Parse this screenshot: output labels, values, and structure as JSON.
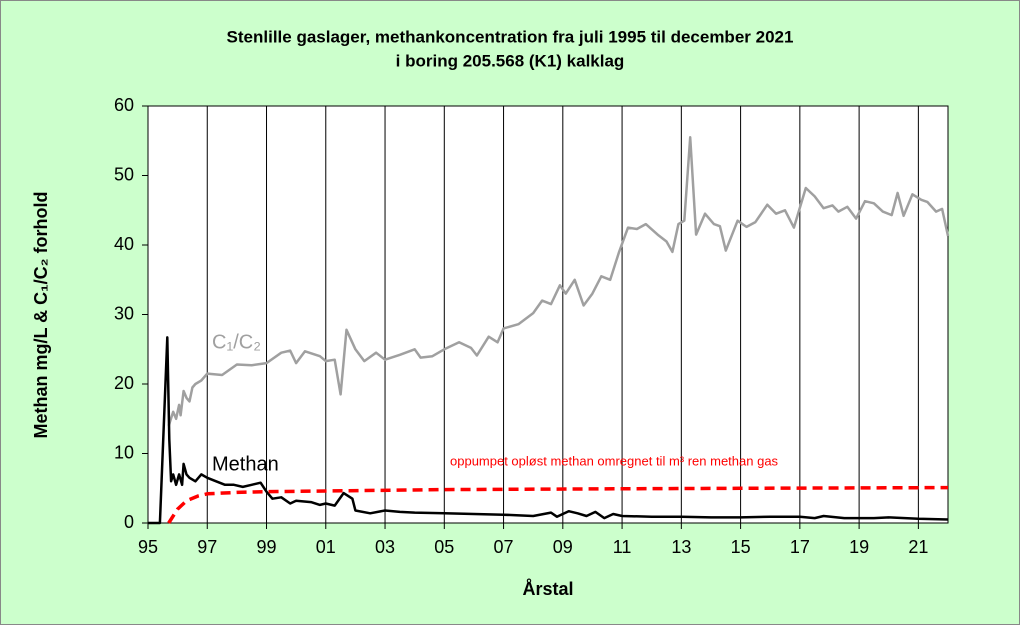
{
  "chart_data": {
    "type": "line",
    "title": "Stenlille gaslager, methankoncentration fra juli 1995 til december 2021",
    "subtitle": "i boring 205.568 (K1) kalklag",
    "x_label": "Årstal",
    "y_label": "Methan mg/L & C₁/C₂ forhold",
    "xlim": [
      1995,
      2022
    ],
    "ylim": [
      0,
      60
    ],
    "xticks": [
      {
        "value": 1995,
        "label": "95"
      },
      {
        "value": 1997,
        "label": "97"
      },
      {
        "value": 1999,
        "label": "99"
      },
      {
        "value": 2001,
        "label": "01"
      },
      {
        "value": 2003,
        "label": "03"
      },
      {
        "value": 2005,
        "label": "05"
      },
      {
        "value": 2007,
        "label": "07"
      },
      {
        "value": 2009,
        "label": "09"
      },
      {
        "value": 2011,
        "label": "11"
      },
      {
        "value": 2013,
        "label": "13"
      },
      {
        "value": 2015,
        "label": "15"
      },
      {
        "value": 2017,
        "label": "17"
      },
      {
        "value": 2019,
        "label": "19"
      },
      {
        "value": 2021,
        "label": "21"
      }
    ],
    "yticks": [
      0,
      10,
      20,
      30,
      40,
      50,
      60
    ],
    "grid": "x",
    "series": [
      {
        "name": "C₁/C₂",
        "color": "#a0a0a0",
        "dashed": false,
        "x": [
          1995.7,
          1995.85,
          1995.95,
          1996.05,
          1996.1,
          1996.2,
          1996.3,
          1996.4,
          1996.5,
          1996.6,
          1996.8,
          1997.0,
          1997.5,
          1998.0,
          1998.5,
          1999.0,
          1999.5,
          1999.8,
          2000.0,
          2000.3,
          2000.8,
          2001.0,
          2001.3,
          2001.5,
          2001.7,
          2002.0,
          2002.3,
          2002.7,
          2003.0,
          2003.5,
          2004.0,
          2004.2,
          2004.6,
          2005.0,
          2005.5,
          2005.9,
          2006.1,
          2006.5,
          2006.8,
          2007.0,
          2007.5,
          2008.0,
          2008.3,
          2008.6,
          2008.9,
          2009.1,
          2009.4,
          2009.7,
          2010.0,
          2010.3,
          2010.6,
          2010.9,
          2011.2,
          2011.5,
          2011.8,
          2012.2,
          2012.5,
          2012.7,
          2012.9,
          2013.1,
          2013.3,
          2013.5,
          2013.8,
          2014.1,
          2014.3,
          2014.5,
          2014.9,
          2015.2,
          2015.5,
          2015.9,
          2016.2,
          2016.5,
          2016.8,
          2017.2,
          2017.5,
          2017.8,
          2018.1,
          2018.3,
          2018.6,
          2018.9,
          2019.2,
          2019.5,
          2019.8,
          2020.1,
          2020.3,
          2020.5,
          2020.8,
          2021.1,
          2021.3,
          2021.6,
          2021.8,
          2022.0
        ],
        "values": [
          14,
          16,
          15,
          17,
          15.5,
          19,
          18,
          17.5,
          19.5,
          20,
          20.5,
          21.5,
          21.3,
          22.8,
          22.7,
          23,
          24.5,
          24.8,
          23,
          24.7,
          24,
          23.3,
          23.5,
          18.5,
          27.8,
          25,
          23.3,
          24.5,
          23.5,
          24.2,
          25,
          23.8,
          24,
          25,
          26,
          25.2,
          24.1,
          26.8,
          26,
          28,
          28.6,
          30.2,
          32,
          31.5,
          34.2,
          33,
          35,
          31.3,
          33,
          35.5,
          35,
          39,
          42.5,
          42.3,
          43,
          41.5,
          40.5,
          39,
          43,
          43.5,
          55.5,
          41.5,
          44.5,
          43,
          42.7,
          39.2,
          43.5,
          42.6,
          43.3,
          45.8,
          44.5,
          45,
          42.5,
          48.2,
          47,
          45.3,
          45.7,
          44.8,
          45.5,
          43.8,
          46.3,
          46,
          44.8,
          44.3,
          47.5,
          44.2,
          47.3,
          46.5,
          46.2,
          44.8,
          45.2,
          41.3
        ]
      },
      {
        "name": "Methan",
        "color": "#000000",
        "dashed": false,
        "x": [
          1995.0,
          1995.4,
          1995.65,
          1995.72,
          1995.78,
          1995.85,
          1995.95,
          1996.05,
          1996.15,
          1996.2,
          1996.3,
          1996.4,
          1996.6,
          1996.8,
          1997.0,
          1997.3,
          1997.6,
          1997.9,
          1998.2,
          1998.5,
          1998.8,
          1999.0,
          1999.2,
          1999.5,
          1999.8,
          2000.0,
          2000.5,
          2000.8,
          2001.0,
          2001.3,
          2001.6,
          2001.9,
          2002.0,
          2002.5,
          2003.0,
          2003.5,
          2004.0,
          2005.0,
          2006.0,
          2007.0,
          2008.0,
          2008.6,
          2008.8,
          2009.2,
          2009.5,
          2009.8,
          2010.1,
          2010.4,
          2010.7,
          2011.0,
          2012.0,
          2013.0,
          2014.0,
          2015.0,
          2016.0,
          2017.0,
          2017.5,
          2017.8,
          2018.5,
          2019.5,
          2020.0,
          2021.0,
          2022.0
        ],
        "values": [
          0,
          0,
          26.7,
          12,
          6,
          7,
          5.5,
          7,
          5.5,
          8.5,
          7,
          6.5,
          6,
          7,
          6.5,
          6,
          5.5,
          5.5,
          5.2,
          5.5,
          5.8,
          4.5,
          3.5,
          3.7,
          2.8,
          3.2,
          3.0,
          2.6,
          2.8,
          2.5,
          4.3,
          3.5,
          1.8,
          1.4,
          1.8,
          1.6,
          1.5,
          1.4,
          1.3,
          1.2,
          1.0,
          1.5,
          0.9,
          1.7,
          1.4,
          1.0,
          1.6,
          0.7,
          1.3,
          1.0,
          0.9,
          0.9,
          0.8,
          0.8,
          0.9,
          0.9,
          0.7,
          1.0,
          0.7,
          0.7,
          0.8,
          0.6,
          0.5
        ]
      },
      {
        "name": "oppumpet opløst methan omregnet til m³ ren methan gas",
        "color": "#ff0000",
        "dashed": true,
        "x": [
          1995.7,
          1996.0,
          1996.3,
          1996.7,
          1997.0,
          1998.0,
          1999.0,
          2001.0,
          2005.0,
          2010.0,
          2015.0,
          2022.0
        ],
        "values": [
          0,
          2,
          3.2,
          3.9,
          4.2,
          4.4,
          4.5,
          4.6,
          4.8,
          4.9,
          5.0,
          5.1
        ]
      }
    ]
  }
}
